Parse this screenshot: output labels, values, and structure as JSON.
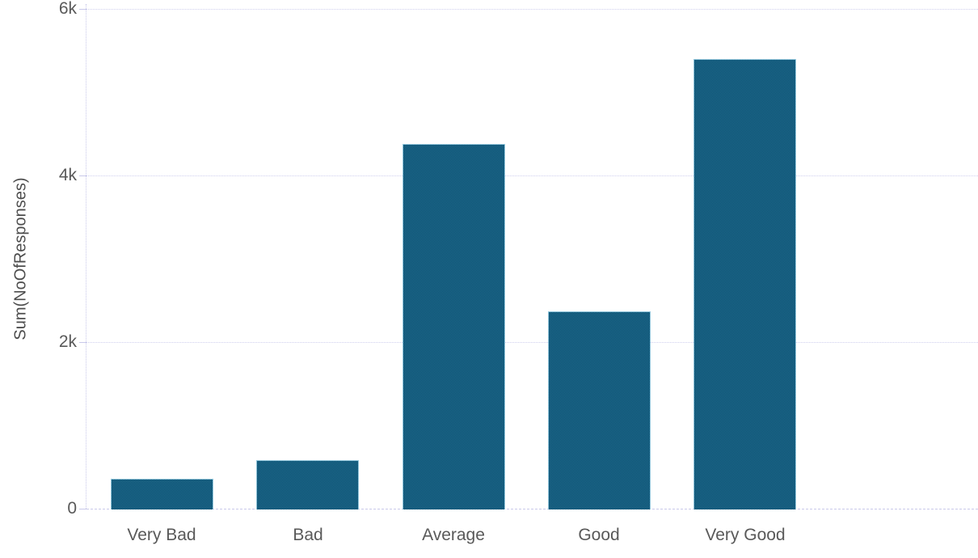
{
  "chart_data": {
    "type": "bar",
    "title": "",
    "categories": [
      "Very Bad",
      "Bad",
      "Average",
      "Good",
      "Very Good"
    ],
    "values": [
      360,
      580,
      4380,
      2370,
      5400
    ],
    "xlabel": "",
    "ylabel": "Sum(NoOfResponses)",
    "ylim": [
      0,
      6000
    ],
    "yticks": [
      {
        "value": 0,
        "label": "0"
      },
      {
        "value": 2000,
        "label": "2k"
      },
      {
        "value": 4000,
        "label": "4k"
      },
      {
        "value": 6000,
        "label": "6k"
      }
    ],
    "grid": "horizontal-dotted",
    "legend": "none",
    "colors": {
      "bar_fill": "#1e7fa2",
      "bar_pattern": "#0e3c5c",
      "axis_line": "#c9c9ea",
      "gridline": "#cfcfee",
      "tick_label": "#595959",
      "category_label": "#595959",
      "axis_title": "#4d4d4d",
      "background": "#ffffff"
    }
  }
}
